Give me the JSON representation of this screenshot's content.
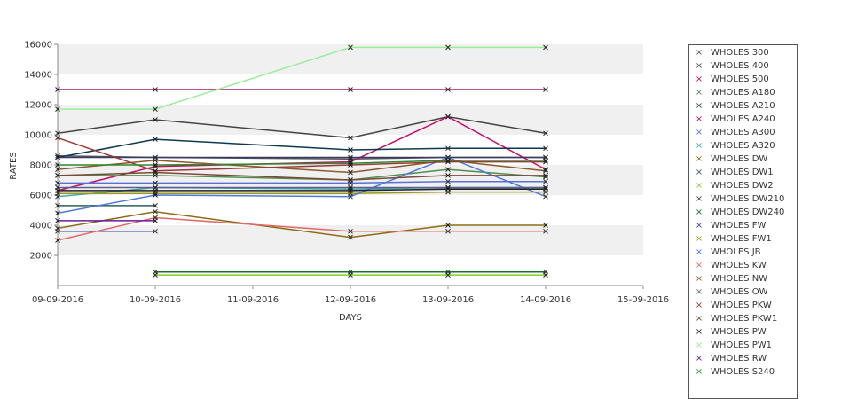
{
  "chart_data": {
    "type": "line",
    "xlabel": "DAYS",
    "ylabel": "RATES",
    "x_ticks": [
      "09-09-2016",
      "10-09-2016",
      "11-09-2016",
      "12-09-2016",
      "13-09-2016",
      "14-09-2016",
      "15-09-2016"
    ],
    "x": [
      "09-09-2016",
      "10-09-2016",
      "12-09-2016",
      "13-09-2016",
      "14-09-2016"
    ],
    "ylim": [
      0,
      16000
    ],
    "y_ticks": [
      2000,
      4000,
      6000,
      8000,
      10000,
      12000,
      14000,
      16000
    ],
    "grid": "alternating horizontal bands",
    "legend_position": "right",
    "series": [
      {
        "name": "WHOLES 300",
        "color": "#555555",
        "values": [
          8600,
          8500,
          8400,
          8500,
          8500
        ]
      },
      {
        "name": "WHOLES 400",
        "color": "#444444",
        "values": [
          10100,
          11000,
          9800,
          11200,
          10100
        ]
      },
      {
        "name": "WHOLES 500",
        "color": "#c0136a",
        "values": [
          6300,
          7900,
          8200,
          11200,
          7700
        ]
      },
      {
        "name": "WHOLES A180",
        "color": "#4f8f4f",
        "values": [
          7300,
          7300,
          7000,
          7700,
          7200
        ]
      },
      {
        "name": "WHOLES A210",
        "color": "#0b3a4f",
        "values": [
          8500,
          9700,
          9000,
          9100,
          9100
        ]
      },
      {
        "name": "WHOLES A240",
        "color": "#b0147a",
        "values": [
          13000,
          13000,
          13000,
          13000,
          13000
        ]
      },
      {
        "name": "WHOLES A300",
        "color": "#5a6fd6",
        "values": [
          6800,
          6800,
          6800,
          6900,
          6900
        ]
      },
      {
        "name": "WHOLES A320",
        "color": "#46a6a6",
        "values": [
          5900,
          6500,
          6400,
          6500,
          6500
        ]
      },
      {
        "name": "WHOLES DW",
        "color": "#8b6d14",
        "values": [
          3800,
          4900,
          3200,
          4000,
          4000
        ]
      },
      {
        "name": "WHOLES DW1",
        "color": "#2e5f5f",
        "values": [
          5300,
          5300,
          null,
          null,
          null
        ]
      },
      {
        "name": "WHOLES DW2",
        "color": "#7fcf2f",
        "values": [
          null,
          700,
          700,
          700,
          700
        ]
      },
      {
        "name": "WHOLES DW210",
        "color": "#3a3a6a",
        "values": [
          8500,
          8500,
          8500,
          8500,
          8500
        ]
      },
      {
        "name": "WHOLES DW240",
        "color": "#1e6b2e",
        "values": [
          null,
          900,
          900,
          900,
          900
        ]
      },
      {
        "name": "WHOLES FW",
        "color": "#3b3bb0",
        "values": [
          3600,
          3600,
          null,
          null,
          null
        ]
      },
      {
        "name": "WHOLES FW1",
        "color": "#9a9a1a",
        "values": [
          6100,
          6100,
          6100,
          6200,
          6200
        ]
      },
      {
        "name": "WHOLES JB",
        "color": "#4e7ad6",
        "values": [
          4800,
          6000,
          5900,
          8500,
          5900
        ]
      },
      {
        "name": "WHOLES KW",
        "color": "#e06a6a",
        "values": [
          3000,
          4500,
          3600,
          3600,
          3600
        ]
      },
      {
        "name": "WHOLES NW",
        "color": "#8a5a2a",
        "values": [
          7700,
          8300,
          7500,
          8300,
          7600
        ]
      },
      {
        "name": "WHOLES OW",
        "color": "#5f5f8f",
        "values": [
          6500,
          6500,
          6500,
          6500,
          6500
        ]
      },
      {
        "name": "WHOLES PKW",
        "color": "#9a3a3a",
        "values": [
          9800,
          7600,
          8000,
          8200,
          8200
        ]
      },
      {
        "name": "WHOLES PKW1",
        "color": "#7a4a3a",
        "values": [
          7300,
          7500,
          7000,
          7300,
          7300
        ]
      },
      {
        "name": "WHOLES PW",
        "color": "#222222",
        "values": [
          6300,
          6300,
          6300,
          6400,
          6400
        ]
      },
      {
        "name": "WHOLES PW1",
        "color": "#99ee99",
        "values": [
          11700,
          11700,
          15800,
          15800,
          15800
        ]
      },
      {
        "name": "WHOLES RW",
        "color": "#6a1aa0",
        "values": [
          4300,
          4300,
          null,
          null,
          null
        ]
      },
      {
        "name": "WHOLES S240",
        "color": "#2a8a2a",
        "values": [
          8000,
          8000,
          8100,
          8300,
          8300
        ]
      }
    ]
  }
}
